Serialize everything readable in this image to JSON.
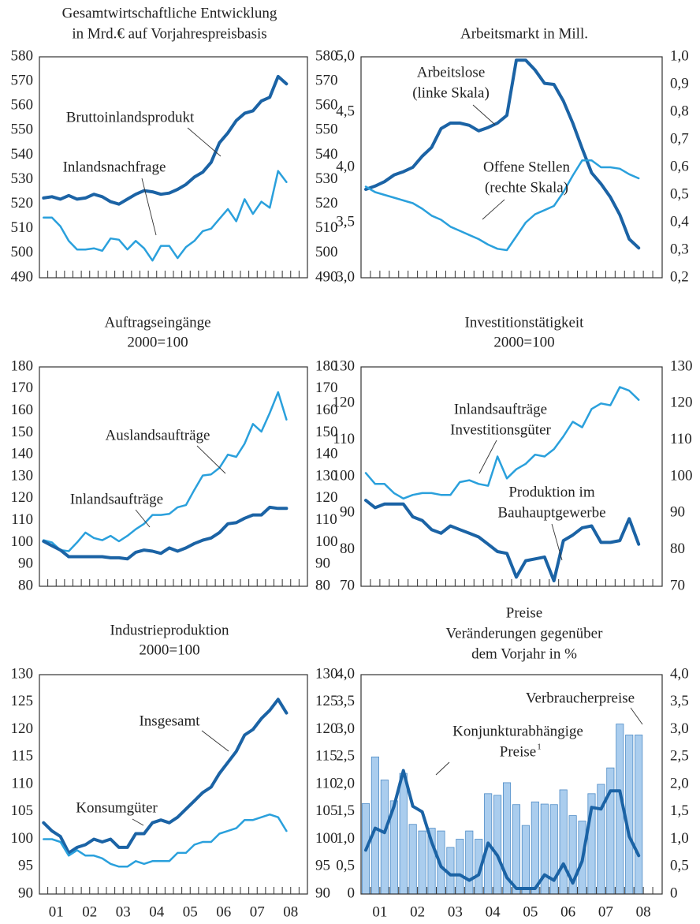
{
  "chart_data": [
    {
      "type": "line",
      "title": [
        "Gesamtwirtschaftliche Entwicklung",
        "in Mrd.€ auf Vorjahrespreisbasis"
      ],
      "x": [
        2001.125,
        2001.375,
        2001.625,
        2001.875,
        2002.125,
        2002.375,
        2002.625,
        2002.875,
        2003.125,
        2003.375,
        2003.625,
        2003.875,
        2004.125,
        2004.375,
        2004.625,
        2004.875,
        2005.125,
        2005.375,
        2005.625,
        2005.875,
        2006.125,
        2006.375,
        2006.625,
        2006.875,
        2007.125,
        2007.375,
        2007.625,
        2007.875,
        2008.125,
        2008.375
      ],
      "xlim": [
        2001,
        2009
      ],
      "ylim": [
        490,
        580
      ],
      "yticks": [
        490,
        500,
        510,
        520,
        530,
        540,
        550,
        560,
        570,
        580
      ],
      "y2lim": [
        490,
        580
      ],
      "y2ticks": [
        490,
        500,
        510,
        520,
        530,
        540,
        550,
        560,
        570,
        580
      ],
      "series": [
        {
          "name": "Bruttoinlandsprodukt",
          "color": "#1b63a5",
          "width": 4,
          "values": [
            522.5,
            523,
            522,
            523.5,
            522,
            522.5,
            524,
            523,
            521,
            520,
            522,
            524,
            525.5,
            525,
            524,
            524.5,
            526,
            528,
            531,
            533,
            537,
            545,
            549,
            554,
            557,
            558,
            562,
            563.5,
            572,
            569
          ]
        },
        {
          "name": "Inlandsnachfrage",
          "color": "#2aa0dc",
          "width": 2.5,
          "values": [
            514.5,
            514.5,
            511,
            505,
            501.5,
            501.5,
            502,
            501,
            506,
            505.5,
            501.5,
            505,
            502,
            497,
            503,
            503,
            498,
            502.5,
            505,
            509,
            510,
            514,
            518,
            513,
            522,
            516,
            521,
            518.5,
            533.5,
            529
          ]
        }
      ],
      "annotations": [
        {
          "text": [
            "Bruttoinlandsprodukt"
          ]
        },
        {
          "text": [
            "Inlandsnachfrage"
          ]
        }
      ]
    },
    {
      "type": "line",
      "title": [
        "Arbeitsmarkt in Mill."
      ],
      "x": [
        2001.125,
        2001.375,
        2001.625,
        2001.875,
        2002.125,
        2002.375,
        2002.625,
        2002.875,
        2003.125,
        2003.375,
        2003.625,
        2003.875,
        2004.125,
        2004.375,
        2004.625,
        2004.875,
        2005.125,
        2005.375,
        2005.625,
        2005.875,
        2006.125,
        2006.375,
        2006.625,
        2006.875,
        2007.125,
        2007.375,
        2007.625,
        2007.875,
        2008.125,
        2008.375
      ],
      "xlim": [
        2001,
        2009
      ],
      "ylim": [
        3,
        5
      ],
      "yticks": [
        {
          "value": 3,
          "label": "3,0"
        },
        {
          "value": 3.5,
          "label": "3,5"
        },
        {
          "value": 4,
          "label": "4,0"
        },
        {
          "value": 4.5,
          "label": "4,5"
        },
        {
          "value": 5,
          "label": "5,0"
        }
      ],
      "y2lim": [
        0.2,
        1
      ],
      "y2ticks": [
        {
          "value": 0.2,
          "label": "0,2"
        },
        {
          "value": 0.3,
          "label": "0,3"
        },
        {
          "value": 0.4,
          "label": "0,4"
        },
        {
          "value": 0.5,
          "label": "0,5"
        },
        {
          "value": 0.6,
          "label": "0,6"
        },
        {
          "value": 0.7,
          "label": "0,7"
        },
        {
          "value": 0.8,
          "label": "0,8"
        },
        {
          "value": 0.9,
          "label": "0,9"
        },
        {
          "value": 1,
          "label": "1,0"
        }
      ],
      "series": [
        {
          "name": "Arbeitslose",
          "color": "#1b63a5",
          "width": 4,
          "values": [
            3.8,
            3.83,
            3.87,
            3.93,
            3.96,
            4.0,
            4.1,
            4.18,
            4.35,
            4.4,
            4.4,
            4.38,
            4.33,
            4.36,
            4.4,
            4.47,
            4.97,
            4.97,
            4.88,
            4.76,
            4.75,
            4.6,
            4.4,
            4.17,
            3.95,
            3.85,
            3.73,
            3.57,
            3.35,
            3.27
          ]
        },
        {
          "name": "Offene Stellen",
          "color": "#2aa0dc",
          "width": 2.5,
          "axis": "y2",
          "values": [
            0.53,
            0.51,
            0.5,
            0.49,
            0.48,
            0.47,
            0.45,
            0.425,
            0.41,
            0.385,
            0.37,
            0.355,
            0.34,
            0.32,
            0.305,
            0.3,
            0.35,
            0.4,
            0.43,
            0.445,
            0.46,
            0.51,
            0.57,
            0.625,
            0.625,
            0.6,
            0.6,
            0.595,
            0.575,
            0.56
          ]
        }
      ],
      "annotations": [
        {
          "text": [
            "Arbeitslose",
            "(linke Skala)"
          ]
        },
        {
          "text": [
            "Offene Stellen",
            "(rechte Skala)"
          ]
        }
      ]
    },
    {
      "type": "line",
      "title": [
        "Auftragseingänge",
        "2000=100"
      ],
      "x": [
        2001.125,
        2001.375,
        2001.625,
        2001.875,
        2002.125,
        2002.375,
        2002.625,
        2002.875,
        2003.125,
        2003.375,
        2003.625,
        2003.875,
        2004.125,
        2004.375,
        2004.625,
        2004.875,
        2005.125,
        2005.375,
        2005.625,
        2005.875,
        2006.125,
        2006.375,
        2006.625,
        2006.875,
        2007.125,
        2007.375,
        2007.625,
        2007.875,
        2008.125,
        2008.375
      ],
      "xlim": [
        2001,
        2009
      ],
      "ylim": [
        80,
        180
      ],
      "yticks": [
        80,
        90,
        100,
        110,
        120,
        130,
        140,
        150,
        160,
        170,
        180
      ],
      "y2lim": [
        80,
        180
      ],
      "y2ticks": [
        80,
        90,
        100,
        110,
        120,
        130,
        140,
        150,
        160,
        170,
        180
      ],
      "series": [
        {
          "name": "Auslandsaufträge",
          "color": "#2aa0dc",
          "width": 2.5,
          "values": [
            101,
            100,
            96.5,
            96,
            100,
            104.5,
            102,
            101,
            103,
            100.5,
            103,
            106,
            108.5,
            112.5,
            112.5,
            113,
            116,
            117,
            124,
            130.5,
            131,
            134,
            140,
            139,
            145,
            154,
            150.5,
            159,
            168.5,
            156
          ]
        },
        {
          "name": "Inlandsaufträge",
          "color": "#1b63a5",
          "width": 4,
          "values": [
            100.5,
            98.5,
            96.5,
            93.5,
            93.5,
            93.5,
            93.5,
            93.5,
            93,
            93,
            92.5,
            95.5,
            96.5,
            96,
            95,
            97.5,
            96,
            97.5,
            99.5,
            101,
            102,
            104.5,
            108.5,
            109,
            111,
            112.5,
            112.5,
            116,
            115.5,
            115.5
          ]
        }
      ],
      "annotations": [
        {
          "text": [
            "Auslandsaufträge"
          ]
        },
        {
          "text": [
            "Inlandsaufträge"
          ]
        }
      ]
    },
    {
      "type": "line",
      "title": [
        "Investitionstätigkeit",
        "2000=100"
      ],
      "x": [
        2001.125,
        2001.375,
        2001.625,
        2001.875,
        2002.125,
        2002.375,
        2002.625,
        2002.875,
        2003.125,
        2003.375,
        2003.625,
        2003.875,
        2004.125,
        2004.375,
        2004.625,
        2004.875,
        2005.125,
        2005.375,
        2005.625,
        2005.875,
        2006.125,
        2006.375,
        2006.625,
        2006.875,
        2007.125,
        2007.375,
        2007.625,
        2007.875,
        2008.125,
        2008.375
      ],
      "xlim": [
        2001,
        2009
      ],
      "ylim": [
        70,
        130
      ],
      "yticks": [
        70,
        80,
        90,
        100,
        110,
        120,
        130
      ],
      "y2lim": [
        70,
        130
      ],
      "y2ticks": [
        70,
        80,
        90,
        100,
        110,
        120,
        130
      ],
      "series": [
        {
          "name": "Inlandsaufträge Investitionsgüter",
          "color": "#2aa0dc",
          "width": 2.5,
          "values": [
            101,
            98,
            98,
            95.5,
            94,
            95,
            95.5,
            95.5,
            95,
            95,
            98.5,
            99,
            98,
            97.5,
            105.5,
            99.5,
            102,
            103.5,
            106,
            105.5,
            107.5,
            111,
            115,
            113.5,
            118.5,
            120,
            119.5,
            124.5,
            123.5,
            121
          ]
        },
        {
          "name": "Produktion im Bauhauptgewerbe",
          "color": "#1b63a5",
          "width": 4,
          "values": [
            93.5,
            91.5,
            92.5,
            92.5,
            92.5,
            89,
            88,
            85.5,
            84.5,
            86.5,
            85.5,
            84.5,
            83.5,
            81.5,
            79.5,
            79,
            72.5,
            77,
            77.5,
            78,
            71.5,
            82.5,
            84,
            86,
            86.5,
            82,
            82,
            82.5,
            88.5,
            81.5
          ]
        }
      ],
      "annotations": [
        {
          "text": [
            "Inlandsaufträge",
            "Investitionsgüter"
          ]
        },
        {
          "text": [
            "Produktion im",
            "Bauhauptgewerbe"
          ]
        }
      ]
    },
    {
      "type": "line",
      "title": [
        "Industrieproduktion",
        "2000=100"
      ],
      "x": [
        2001.125,
        2001.375,
        2001.625,
        2001.875,
        2002.125,
        2002.375,
        2002.625,
        2002.875,
        2003.125,
        2003.375,
        2003.625,
        2003.875,
        2004.125,
        2004.375,
        2004.625,
        2004.875,
        2005.125,
        2005.375,
        2005.625,
        2005.875,
        2006.125,
        2006.375,
        2006.625,
        2006.875,
        2007.125,
        2007.375,
        2007.625,
        2007.875,
        2008.125,
        2008.375
      ],
      "xlim": [
        2001,
        2009
      ],
      "xticks": [
        {
          "value": 2001.5,
          "label": "01"
        },
        {
          "value": 2002.5,
          "label": "02"
        },
        {
          "value": 2003.5,
          "label": "03"
        },
        {
          "value": 2004.5,
          "label": "04"
        },
        {
          "value": 2005.5,
          "label": "05"
        },
        {
          "value": 2006.5,
          "label": "06"
        },
        {
          "value": 2007.5,
          "label": "07"
        },
        {
          "value": 2008.5,
          "label": "08"
        }
      ],
      "ylim": [
        90,
        130
      ],
      "yticks": [
        90,
        95,
        100,
        105,
        110,
        115,
        120,
        125,
        130
      ],
      "y2lim": [
        90,
        130
      ],
      "y2ticks": [
        90,
        95,
        100,
        105,
        110,
        115,
        120,
        125,
        130
      ],
      "series": [
        {
          "name": "Insgesamt",
          "color": "#1b63a5",
          "width": 4,
          "values": [
            103,
            101.5,
            100.5,
            97.5,
            98.5,
            99,
            100,
            99.5,
            100,
            98.5,
            98.5,
            101,
            101,
            103,
            103.5,
            103,
            104,
            105.5,
            107,
            108.5,
            109.5,
            112,
            114,
            116,
            119,
            120,
            122,
            123.5,
            125.5,
            123
          ]
        },
        {
          "name": "Konsumgüter",
          "color": "#2aa0dc",
          "width": 2.5,
          "values": [
            100,
            100,
            99.5,
            97,
            98,
            97,
            97,
            96.5,
            95.5,
            95,
            95,
            96,
            95.5,
            96,
            96,
            96,
            97.5,
            97.5,
            99,
            99.5,
            99.5,
            101,
            101.5,
            102,
            103.5,
            103.5,
            104,
            104.5,
            104,
            101.5
          ]
        }
      ],
      "annotations": [
        {
          "text": [
            "Insgesamt"
          ]
        },
        {
          "text": [
            "Konsumgüter"
          ]
        }
      ]
    },
    {
      "type": "bar",
      "title": [
        "Preise",
        "Veränderungen gegenüber",
        "dem Vorjahr in %"
      ],
      "x": [
        2001.125,
        2001.375,
        2001.625,
        2001.875,
        2002.125,
        2002.375,
        2002.625,
        2002.875,
        2003.125,
        2003.375,
        2003.625,
        2003.875,
        2004.125,
        2004.375,
        2004.625,
        2004.875,
        2005.125,
        2005.375,
        2005.625,
        2005.875,
        2006.125,
        2006.375,
        2006.625,
        2006.875,
        2007.125,
        2007.375,
        2007.625,
        2007.875,
        2008.125,
        2008.375
      ],
      "xlim": [
        2001,
        2009
      ],
      "xticks": [
        {
          "value": 2001.5,
          "label": "01"
        },
        {
          "value": 2002.5,
          "label": "02"
        },
        {
          "value": 2003.5,
          "label": "03"
        },
        {
          "value": 2004.5,
          "label": "04"
        },
        {
          "value": 2005.5,
          "label": "05"
        },
        {
          "value": 2006.5,
          "label": "06"
        },
        {
          "value": 2007.5,
          "label": "07"
        },
        {
          "value": 2008.5,
          "label": "08"
        }
      ],
      "ylim": [
        0,
        4
      ],
      "yticks": [
        0,
        {
          "value": 0.5,
          "label": "0,5"
        },
        {
          "value": 1,
          "label": "1,0"
        },
        {
          "value": 1.5,
          "label": "1,5"
        },
        {
          "value": 2,
          "label": "2,0"
        },
        {
          "value": 2.5,
          "label": "2,5"
        },
        {
          "value": 3,
          "label": "3,0"
        },
        {
          "value": 3.5,
          "label": "3,5"
        },
        {
          "value": 4,
          "label": "4,0"
        }
      ],
      "y2lim": [
        0,
        4
      ],
      "y2ticks": [
        0,
        {
          "value": 0.5,
          "label": "0,5"
        },
        {
          "value": 1,
          "label": "1,0"
        },
        {
          "value": 1.5,
          "label": "1,5"
        },
        {
          "value": 2,
          "label": "2,0"
        },
        {
          "value": 2.5,
          "label": "2,5"
        },
        {
          "value": 3,
          "label": "3,0"
        },
        {
          "value": 3.5,
          "label": "3,5"
        },
        {
          "value": 4,
          "label": "4,0"
        }
      ],
      "series": [
        {
          "name": "Verbraucherpreise",
          "color": "#aacdee",
          "edge": "#4f8cc6",
          "values": [
            1.65,
            2.5,
            2.08,
            1.7,
            2.2,
            1.27,
            1.15,
            1.2,
            1.15,
            0.85,
            1.0,
            1.15,
            1.0,
            1.83,
            1.8,
            2.03,
            1.63,
            1.25,
            1.68,
            1.64,
            1.63,
            1.9,
            1.43,
            1.33,
            1.83,
            2.0,
            2.3,
            3.1,
            2.9,
            2.9
          ]
        },
        {
          "name": "Konjunkturabhängige Preise",
          "type": "line",
          "color": "#1b63a5",
          "width": 4,
          "values": [
            0.8,
            1.2,
            1.12,
            1.6,
            2.25,
            1.6,
            1.5,
            0.95,
            0.5,
            0.35,
            0.35,
            0.25,
            0.35,
            0.93,
            0.7,
            0.3,
            0.1,
            0.1,
            0.1,
            0.35,
            0.25,
            0.55,
            0.2,
            0.6,
            1.58,
            1.55,
            1.88,
            1.88,
            1.05,
            0.7
          ]
        }
      ],
      "annotations": [
        {
          "text": [
            "Verbraucherpreise"
          ]
        },
        {
          "text": [
            "Konjunkturabhängige",
            "Preise"
          ],
          "footnote": "1"
        }
      ]
    }
  ]
}
